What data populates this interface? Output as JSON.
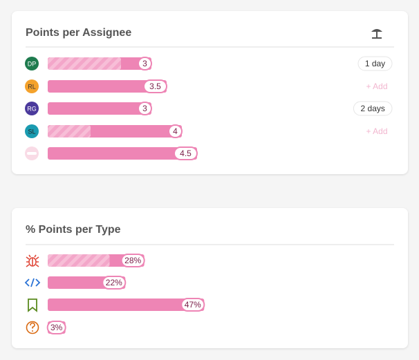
{
  "assignee_card": {
    "title": "Points per Assignee",
    "rows": [
      {
        "initials": "DP",
        "points": 3,
        "done": 2,
        "status": "1 day"
      },
      {
        "initials": "RL",
        "points": 3.5,
        "done": null,
        "status": "+ Add"
      },
      {
        "initials": "RG",
        "points": 3,
        "done": null,
        "status": "2 days"
      },
      {
        "initials": "SL",
        "points": 4,
        "done": 1,
        "status": "+ Add"
      },
      {
        "initials": null,
        "points": 4.5,
        "done": null,
        "status": null
      }
    ]
  },
  "type_card": {
    "title": "% Points per Type",
    "rows": [
      {
        "percent": 28,
        "value_label": "28%",
        "done": 17
      },
      {
        "percent": 22,
        "value_label": "22%",
        "done": null
      },
      {
        "percent": 47,
        "value_label": "47%",
        "done": null
      },
      {
        "percent": 3,
        "value_label": "3%",
        "done": null
      }
    ]
  }
}
